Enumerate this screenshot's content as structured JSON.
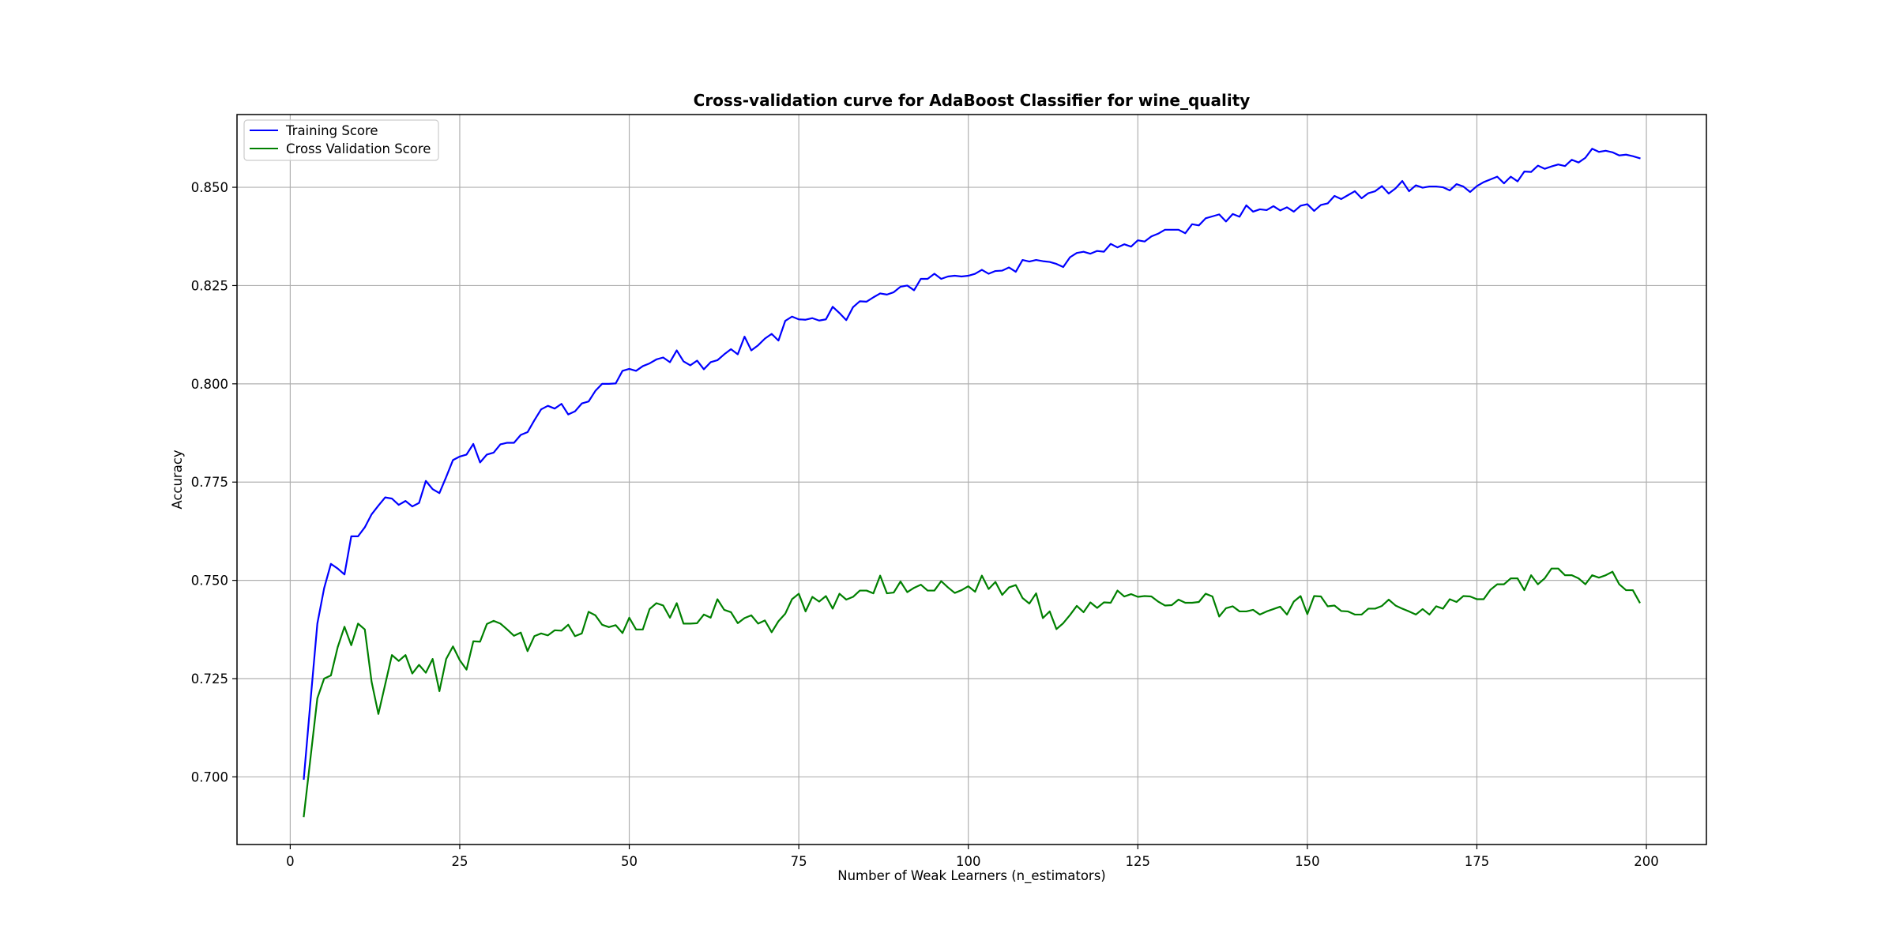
{
  "chart_data": {
    "type": "line",
    "title": "Cross-validation curve for AdaBoost Classifier for wine_quality",
    "xlabel": "Number of Weak Learners (n_estimators)",
    "ylabel": "Accuracy",
    "xlim": [
      -7.85,
      208.85
    ],
    "ylim": [
      0.6828,
      0.8685
    ],
    "xticks": [
      0,
      25,
      50,
      75,
      100,
      125,
      150,
      175,
      200
    ],
    "xtick_labels": [
      "0",
      "25",
      "50",
      "75",
      "100",
      "125",
      "150",
      "175",
      "200"
    ],
    "yticks": [
      0.7,
      0.725,
      0.75,
      0.775,
      0.8,
      0.825,
      0.85
    ],
    "ytick_labels": [
      "0.700",
      "0.725",
      "0.750",
      "0.775",
      "0.800",
      "0.825",
      "0.850"
    ],
    "grid": true,
    "legend_position": "upper-left",
    "x_start": 2,
    "x_step": 1,
    "series": [
      {
        "name": "Training Score",
        "color": "#0000ff",
        "values": [
          0.6995,
          0.7195,
          0.739,
          0.748,
          0.7542,
          0.753,
          0.7515,
          0.7612,
          0.7612,
          0.7635,
          0.7668,
          0.769,
          0.7711,
          0.7708,
          0.7692,
          0.7702,
          0.7688,
          0.7697,
          0.7753,
          0.7732,
          0.7722,
          0.7763,
          0.7806,
          0.7815,
          0.782,
          0.7847,
          0.78,
          0.782,
          0.7825,
          0.7846,
          0.785,
          0.785,
          0.787,
          0.7877,
          0.7907,
          0.7935,
          0.7944,
          0.7937,
          0.7949,
          0.7922,
          0.793,
          0.795,
          0.7955,
          0.7982,
          0.8,
          0.8,
          0.8001,
          0.8033,
          0.8038,
          0.8033,
          0.8045,
          0.8052,
          0.8062,
          0.8067,
          0.8055,
          0.8085,
          0.8057,
          0.8047,
          0.8059,
          0.8037,
          0.8055,
          0.806,
          0.8075,
          0.8088,
          0.8075,
          0.812,
          0.8085,
          0.8098,
          0.8115,
          0.8127,
          0.811,
          0.816,
          0.8171,
          0.8164,
          0.8163,
          0.8167,
          0.8161,
          0.8164,
          0.8196,
          0.818,
          0.8162,
          0.8195,
          0.821,
          0.8209,
          0.822,
          0.823,
          0.8227,
          0.8233,
          0.8247,
          0.825,
          0.8238,
          0.8267,
          0.8267,
          0.828,
          0.8267,
          0.8273,
          0.8275,
          0.8273,
          0.8275,
          0.828,
          0.829,
          0.828,
          0.8287,
          0.8288,
          0.8296,
          0.8285,
          0.8315,
          0.8311,
          0.8315,
          0.8312,
          0.831,
          0.8305,
          0.8297,
          0.8322,
          0.8333,
          0.8336,
          0.8331,
          0.8338,
          0.8336,
          0.8356,
          0.8347,
          0.8355,
          0.8349,
          0.8365,
          0.8362,
          0.8375,
          0.8382,
          0.8392,
          0.8392,
          0.8392,
          0.8383,
          0.8406,
          0.8403,
          0.8421,
          0.8426,
          0.8431,
          0.8413,
          0.8432,
          0.8425,
          0.8454,
          0.8438,
          0.8444,
          0.8442,
          0.8452,
          0.8441,
          0.8449,
          0.8438,
          0.8453,
          0.8457,
          0.844,
          0.8455,
          0.8459,
          0.8478,
          0.847,
          0.848,
          0.849,
          0.8472,
          0.8485,
          0.849,
          0.8503,
          0.8484,
          0.8497,
          0.8516,
          0.849,
          0.8505,
          0.8499,
          0.8502,
          0.8502,
          0.85,
          0.8492,
          0.8508,
          0.8502,
          0.8488,
          0.8503,
          0.8513,
          0.852,
          0.8527,
          0.851,
          0.8527,
          0.8515,
          0.854,
          0.8539,
          0.8555,
          0.8547,
          0.8553,
          0.8558,
          0.8554,
          0.857,
          0.8563,
          0.8575,
          0.8598,
          0.859,
          0.8593,
          0.8589,
          0.8581,
          0.8583,
          0.8579,
          0.8574
        ]
      },
      {
        "name": "Cross Validation Score",
        "color": "#008000",
        "values": [
          0.69,
          0.705,
          0.72,
          0.725,
          0.7258,
          0.733,
          0.7382,
          0.7335,
          0.739,
          0.7375,
          0.7242,
          0.716,
          0.7235,
          0.731,
          0.7295,
          0.731,
          0.7263,
          0.7285,
          0.7265,
          0.73,
          0.7218,
          0.73,
          0.7332,
          0.7297,
          0.7273,
          0.7345,
          0.7344,
          0.7389,
          0.7397,
          0.739,
          0.7375,
          0.7359,
          0.7367,
          0.732,
          0.7358,
          0.7365,
          0.736,
          0.7373,
          0.7372,
          0.7387,
          0.7358,
          0.7365,
          0.742,
          0.7411,
          0.7387,
          0.7381,
          0.7386,
          0.7366,
          0.7405,
          0.7375,
          0.7375,
          0.7427,
          0.7442,
          0.7436,
          0.7405,
          0.7442,
          0.739,
          0.739,
          0.7391,
          0.7413,
          0.7405,
          0.7452,
          0.7425,
          0.7419,
          0.7391,
          0.7404,
          0.7411,
          0.739,
          0.7398,
          0.7368,
          0.7396,
          0.7415,
          0.7452,
          0.7466,
          0.7421,
          0.7458,
          0.7446,
          0.746,
          0.7428,
          0.7466,
          0.7451,
          0.7458,
          0.7474,
          0.7474,
          0.7467,
          0.7512,
          0.7467,
          0.7469,
          0.7497,
          0.747,
          0.7481,
          0.7489,
          0.7474,
          0.7474,
          0.7498,
          0.7482,
          0.7468,
          0.7475,
          0.7485,
          0.7471,
          0.7512,
          0.7478,
          0.7496,
          0.7463,
          0.7482,
          0.7488,
          0.7455,
          0.7441,
          0.7467,
          0.7404,
          0.7421,
          0.7376,
          0.7391,
          0.7412,
          0.7435,
          0.7419,
          0.7444,
          0.743,
          0.7444,
          0.7443,
          0.7474,
          0.7459,
          0.7465,
          0.7458,
          0.746,
          0.7459,
          0.7446,
          0.7436,
          0.7437,
          0.7451,
          0.7443,
          0.7443,
          0.7445,
          0.7466,
          0.7459,
          0.7408,
          0.7429,
          0.7434,
          0.7421,
          0.7421,
          0.7425,
          0.7413,
          0.7421,
          0.7427,
          0.7433,
          0.7413,
          0.7446,
          0.746,
          0.7414,
          0.746,
          0.7459,
          0.7434,
          0.7436,
          0.7422,
          0.7421,
          0.7413,
          0.7413,
          0.7428,
          0.7428,
          0.7435,
          0.7451,
          0.7436,
          0.7428,
          0.7421,
          0.7413,
          0.7427,
          0.7413,
          0.7434,
          0.7428,
          0.7452,
          0.7445,
          0.746,
          0.7459,
          0.7452,
          0.7452,
          0.7476,
          0.749,
          0.749,
          0.7505,
          0.7505,
          0.7475,
          0.7513,
          0.749,
          0.7505,
          0.753,
          0.753,
          0.7513,
          0.7513,
          0.7505,
          0.749,
          0.7513,
          0.7507,
          0.7513,
          0.7522,
          0.749,
          0.7475,
          0.7475,
          0.7444
        ]
      }
    ]
  }
}
